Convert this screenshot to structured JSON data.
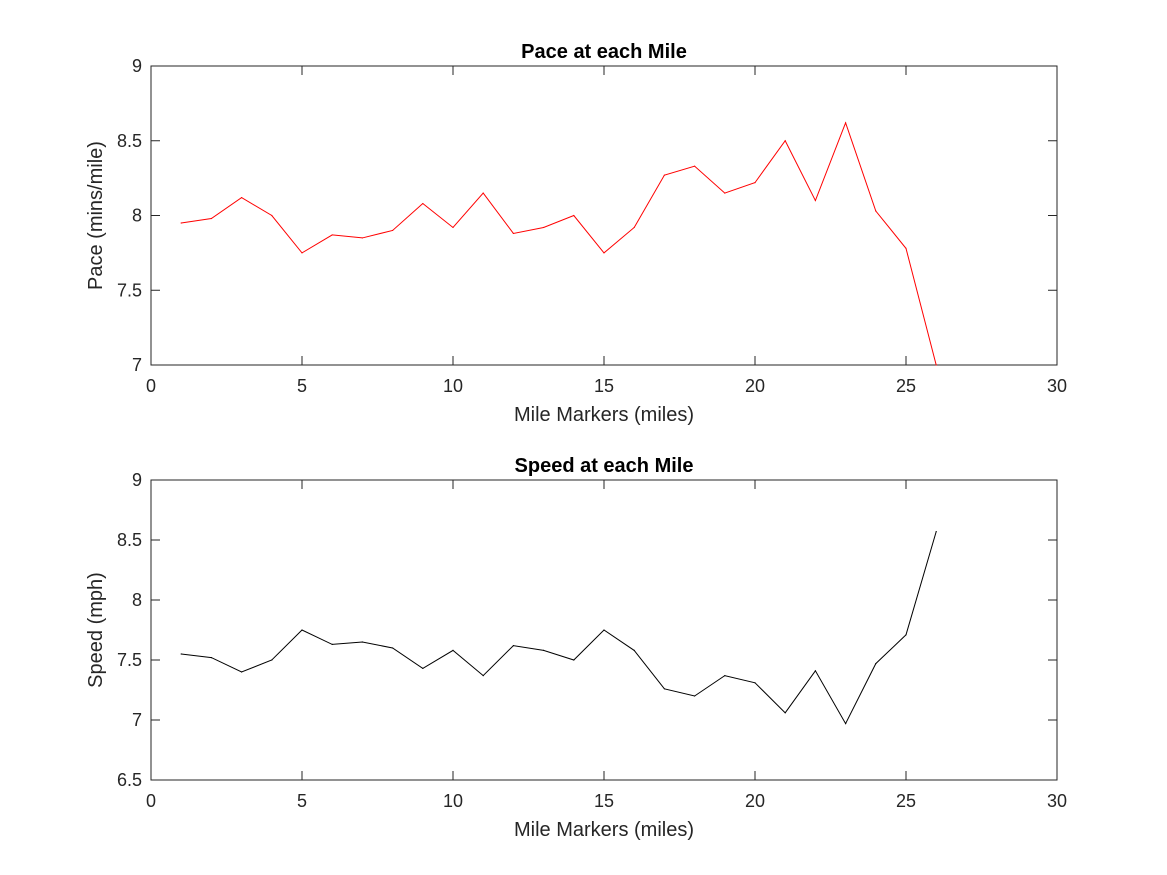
{
  "chart_data": [
    {
      "type": "line",
      "title": "Pace at each Mile",
      "xlabel": "Mile Markers (miles)",
      "ylabel": "Pace (mins/mile)",
      "xlim": [
        0,
        30
      ],
      "ylim": [
        7,
        9
      ],
      "xticks": [
        0,
        5,
        10,
        15,
        20,
        25,
        30
      ],
      "yticks": [
        7,
        7.5,
        8,
        8.5,
        9
      ],
      "xtick_labels": [
        "0",
        "5",
        "10",
        "15",
        "20",
        "25",
        "30"
      ],
      "ytick_labels": [
        "7",
        "7.5",
        "8",
        "8.5",
        "9"
      ],
      "grid": false,
      "color": "#ff0000",
      "x": [
        1,
        2,
        3,
        4,
        5,
        6,
        7,
        8,
        9,
        10,
        11,
        12,
        13,
        14,
        15,
        16,
        17,
        18,
        19,
        20,
        21,
        22,
        23,
        24,
        25,
        26
      ],
      "values": [
        7.95,
        7.98,
        8.12,
        8.0,
        7.75,
        7.87,
        7.85,
        7.9,
        8.08,
        7.92,
        8.15,
        7.88,
        7.92,
        8.0,
        7.75,
        7.92,
        8.27,
        8.33,
        8.15,
        8.22,
        8.5,
        8.1,
        8.62,
        8.03,
        7.78,
        7.0
      ]
    },
    {
      "type": "line",
      "title": "Speed at each Mile",
      "xlabel": "Mile Markers (miles)",
      "ylabel": "Speed (mph)",
      "xlim": [
        0,
        30
      ],
      "ylim": [
        6.5,
        9
      ],
      "xticks": [
        0,
        5,
        10,
        15,
        20,
        25,
        30
      ],
      "yticks": [
        6.5,
        7,
        7.5,
        8,
        8.5,
        9
      ],
      "xtick_labels": [
        "0",
        "5",
        "10",
        "15",
        "20",
        "25",
        "30"
      ],
      "ytick_labels": [
        "6.5",
        "7",
        "7.5",
        "8",
        "8.5",
        "9"
      ],
      "grid": false,
      "color": "#000000",
      "x": [
        1,
        2,
        3,
        4,
        5,
        6,
        7,
        8,
        9,
        10,
        11,
        12,
        13,
        14,
        15,
        16,
        17,
        18,
        19,
        20,
        21,
        22,
        23,
        24,
        25,
        26
      ],
      "values": [
        7.55,
        7.52,
        7.4,
        7.5,
        7.75,
        7.63,
        7.65,
        7.6,
        7.43,
        7.58,
        7.37,
        7.62,
        7.58,
        7.5,
        7.75,
        7.58,
        7.26,
        7.2,
        7.37,
        7.31,
        7.06,
        7.41,
        6.97,
        7.47,
        7.71,
        8.57
      ]
    }
  ]
}
